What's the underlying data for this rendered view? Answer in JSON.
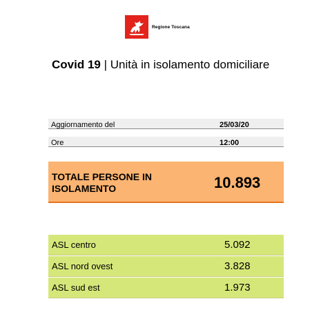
{
  "logo": {
    "text": "Regione Toscana",
    "color": "#e2241c"
  },
  "title": {
    "bold": "Covid 19",
    "separator": " | ",
    "rest": "Unità in isolamento domiciliare"
  },
  "info": {
    "update_label": "Aggiornamento del",
    "update_value": "25/03/20",
    "time_label": "Ore",
    "time_value": "12:00"
  },
  "total": {
    "label": "TOTALE PERSONE IN ISOLAMENTO",
    "value": "10.893",
    "color": "#fbb471"
  },
  "asl": [
    {
      "label": "ASL centro",
      "value": "5.092"
    },
    {
      "label": "ASL nord ovest",
      "value": "3.828"
    },
    {
      "label": "ASL sud est",
      "value": "1.973"
    }
  ],
  "colors": {
    "asl_bg": "#d6e77a",
    "info_bg": "#efefef"
  }
}
